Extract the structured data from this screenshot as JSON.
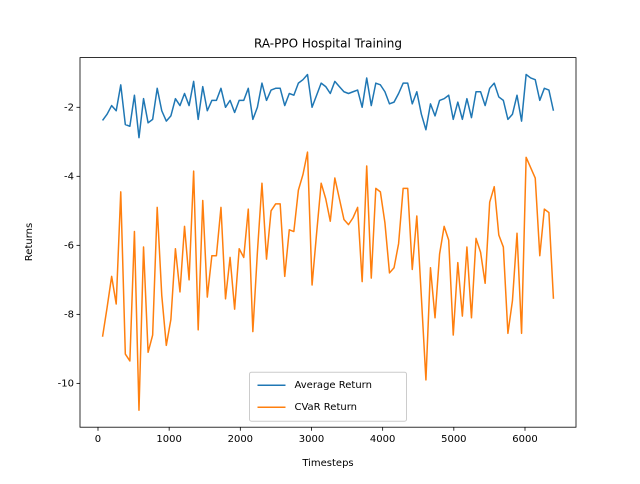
{
  "chart_data": {
    "type": "line",
    "title": "RA-PPO Hospital Training",
    "x_label": "Timesteps",
    "y_label": "Returns",
    "x": [
      64,
      128,
      192,
      256,
      320,
      384,
      448,
      512,
      576,
      640,
      704,
      768,
      832,
      896,
      960,
      1024,
      1088,
      1152,
      1216,
      1280,
      1344,
      1408,
      1472,
      1536,
      1600,
      1664,
      1728,
      1792,
      1856,
      1920,
      1984,
      2048,
      2112,
      2176,
      2240,
      2304,
      2368,
      2432,
      2496,
      2560,
      2624,
      2688,
      2752,
      2816,
      2880,
      2944,
      3008,
      3072,
      3136,
      3200,
      3264,
      3328,
      3392,
      3456,
      3520,
      3584,
      3648,
      3712,
      3776,
      3840,
      3904,
      3968,
      4032,
      4096,
      4160,
      4224,
      4288,
      4352,
      4416,
      4480,
      4544,
      4608,
      4672,
      4736,
      4800,
      4864,
      4928,
      4992,
      5056,
      5120,
      5184,
      5248,
      5312,
      5376,
      5440,
      5504,
      5568,
      5632,
      5696,
      5760,
      5824,
      5888,
      5952,
      6016,
      6080,
      6144,
      6208,
      6272,
      6336,
      6400
    ],
    "series": [
      {
        "name": "Average Return",
        "color": "#1f77b4",
        "values": [
          -2.38,
          -2.2,
          -1.95,
          -2.1,
          -1.35,
          -2.5,
          -2.55,
          -1.65,
          -2.88,
          -1.75,
          -2.45,
          -2.35,
          -1.45,
          -2.1,
          -2.4,
          -2.25,
          -1.75,
          -1.95,
          -1.6,
          -1.95,
          -1.25,
          -2.35,
          -1.4,
          -2.1,
          -1.8,
          -1.8,
          -1.45,
          -2.0,
          -1.8,
          -2.15,
          -1.8,
          -1.8,
          -1.45,
          -2.35,
          -2.0,
          -1.3,
          -1.8,
          -1.5,
          -1.45,
          -1.45,
          -1.95,
          -1.6,
          -1.65,
          -1.3,
          -1.2,
          -1.05,
          -2.0,
          -1.65,
          -1.3,
          -1.4,
          -1.6,
          -1.25,
          -1.4,
          -1.55,
          -1.6,
          -1.55,
          -1.5,
          -2.0,
          -1.15,
          -1.95,
          -1.3,
          -1.35,
          -1.55,
          -1.9,
          -1.85,
          -1.6,
          -1.3,
          -1.3,
          -1.9,
          -1.55,
          -2.2,
          -2.65,
          -1.9,
          -2.25,
          -1.8,
          -1.75,
          -1.65,
          -2.35,
          -1.85,
          -2.35,
          -1.75,
          -2.3,
          -1.55,
          -1.55,
          -1.95,
          -1.45,
          -1.3,
          -1.7,
          -1.8,
          -2.35,
          -2.2,
          -1.65,
          -2.4,
          -1.05,
          -1.15,
          -1.2,
          -1.8,
          -1.45,
          -1.5,
          -2.1
        ]
      },
      {
        "name": "CVaR Return",
        "color": "#ff7f0e",
        "values": [
          -8.65,
          -7.8,
          -6.9,
          -7.7,
          -4.45,
          -9.15,
          -9.35,
          -5.6,
          -10.78,
          -6.05,
          -9.1,
          -8.6,
          -4.9,
          -7.45,
          -8.9,
          -8.15,
          -6.1,
          -7.35,
          -5.45,
          -7.0,
          -3.85,
          -8.45,
          -4.7,
          -7.5,
          -6.3,
          -6.3,
          -4.9,
          -7.55,
          -6.35,
          -7.85,
          -6.1,
          -6.35,
          -4.95,
          -8.5,
          -6.2,
          -4.2,
          -6.4,
          -5.0,
          -4.8,
          -4.8,
          -6.9,
          -5.55,
          -5.6,
          -4.4,
          -3.95,
          -3.3,
          -7.15,
          -5.65,
          -4.2,
          -4.65,
          -5.3,
          -4.05,
          -4.65,
          -5.25,
          -5.4,
          -5.2,
          -4.9,
          -7.05,
          -3.7,
          -6.95,
          -4.35,
          -4.45,
          -5.35,
          -6.8,
          -6.65,
          -5.95,
          -4.35,
          -4.35,
          -6.7,
          -5.15,
          -7.5,
          -9.9,
          -6.65,
          -8.1,
          -6.25,
          -5.45,
          -5.85,
          -8.6,
          -6.5,
          -8.05,
          -6.05,
          -8.1,
          -5.8,
          -6.2,
          -7.1,
          -4.75,
          -4.3,
          -5.7,
          -6.05,
          -8.55,
          -7.6,
          -5.65,
          -8.55,
          -3.45,
          -3.75,
          -4.05,
          -6.3,
          -4.95,
          -5.05,
          -7.55
        ]
      }
    ],
    "xlim": [
      -252.8,
      6716.8
    ],
    "ylim": [
      -11.27,
      -0.56
    ],
    "xticks": [
      0,
      1000,
      2000,
      3000,
      4000,
      5000,
      6000
    ],
    "yticks": [
      -10,
      -8,
      -6,
      -4,
      -2
    ],
    "legend": "lower center"
  }
}
